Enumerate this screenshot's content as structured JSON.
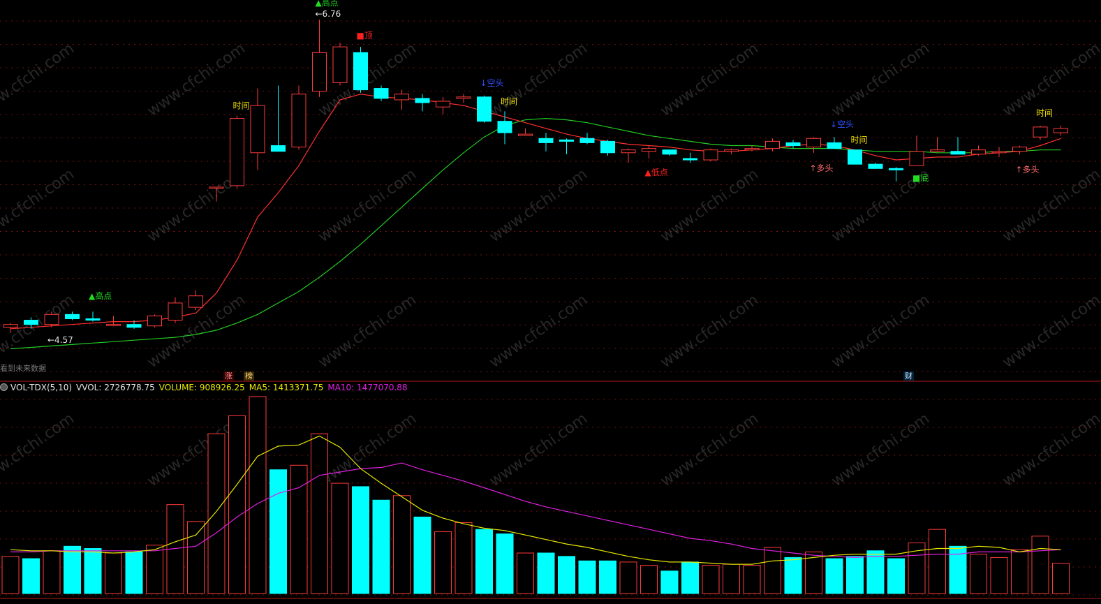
{
  "colors": {
    "up": "#ff3b3b",
    "down": "#00ffff",
    "ma_price_short": "#ff3030",
    "ma_price_long": "#22cc22",
    "vol_ma5": "#e8e800",
    "vol_ma10": "#e020e0",
    "grid": "#7a1010",
    "sep": "#b01818",
    "high_label": "#22dd22",
    "low_label": "#ff2020",
    "kongtou": "#2f4fff",
    "duotou": "#ff6b6b",
    "shijian": "#f0e000"
  },
  "header": {
    "toggle_icon": "circle-toggle-icon",
    "indicator": "VOL-TDX(5,10)",
    "vvol": "VVOL: 2726778.75",
    "volume": "VOLUME: 908926.25",
    "ma5": "MA5: 1413371.75",
    "ma10": "MA10: 1477070.88"
  },
  "hint_text": "看到未来数据",
  "badges": {
    "zhang": "涨",
    "bang": "榜",
    "cai": "财"
  },
  "watermark": "www.cfchi.com",
  "chart_data": [
    {
      "type": "candlestick",
      "candles": [
        {
          "o": 4.61,
          "h": 4.64,
          "l": 4.57,
          "c": 4.63
        },
        {
          "o": 4.66,
          "h": 4.68,
          "l": 4.6,
          "c": 4.63
        },
        {
          "o": 4.63,
          "h": 4.72,
          "l": 4.61,
          "c": 4.7
        },
        {
          "o": 4.7,
          "h": 4.72,
          "l": 4.66,
          "c": 4.67
        },
        {
          "o": 4.67,
          "h": 4.72,
          "l": 4.65,
          "c": 4.66
        },
        {
          "o": 4.63,
          "h": 4.69,
          "l": 4.62,
          "c": 4.63
        },
        {
          "o": 4.63,
          "h": 4.66,
          "l": 4.6,
          "c": 4.61
        },
        {
          "o": 4.62,
          "h": 4.7,
          "l": 4.61,
          "c": 4.69
        },
        {
          "o": 4.66,
          "h": 4.82,
          "l": 4.64,
          "c": 4.78
        },
        {
          "o": 4.75,
          "h": 4.87,
          "l": 4.73,
          "c": 4.83
        },
        {
          "o": 5.59,
          "h": 5.59,
          "l": 5.49,
          "c": 5.59
        },
        {
          "o": 5.6,
          "h": 6.09,
          "l": 5.58,
          "c": 6.07
        },
        {
          "o": 5.83,
          "h": 6.28,
          "l": 5.71,
          "c": 6.16
        },
        {
          "o": 5.88,
          "h": 6.3,
          "l": 5.84,
          "c": 5.84
        },
        {
          "o": 5.87,
          "h": 6.3,
          "l": 5.85,
          "c": 6.24
        },
        {
          "o": 6.26,
          "h": 6.76,
          "l": 6.22,
          "c": 6.53
        },
        {
          "o": 6.32,
          "h": 6.6,
          "l": 6.3,
          "c": 6.57
        },
        {
          "o": 6.53,
          "h": 6.57,
          "l": 6.25,
          "c": 6.27
        },
        {
          "o": 6.28,
          "h": 6.3,
          "l": 6.19,
          "c": 6.21
        },
        {
          "o": 6.2,
          "h": 6.27,
          "l": 6.13,
          "c": 6.24
        },
        {
          "o": 6.21,
          "h": 6.24,
          "l": 6.12,
          "c": 6.18
        },
        {
          "o": 6.15,
          "h": 6.22,
          "l": 6.1,
          "c": 6.19
        },
        {
          "o": 6.21,
          "h": 6.24,
          "l": 6.18,
          "c": 6.22
        },
        {
          "o": 6.22,
          "h": 6.23,
          "l": 6.04,
          "c": 6.05
        },
        {
          "o": 6.05,
          "h": 6.12,
          "l": 5.89,
          "c": 5.97
        },
        {
          "o": 5.95,
          "h": 6.0,
          "l": 5.95,
          "c": 5.96
        },
        {
          "o": 5.93,
          "h": 5.97,
          "l": 5.84,
          "c": 5.9
        },
        {
          "o": 5.92,
          "h": 5.93,
          "l": 5.82,
          "c": 5.91
        },
        {
          "o": 5.93,
          "h": 5.97,
          "l": 5.89,
          "c": 5.9
        },
        {
          "o": 5.91,
          "h": 5.92,
          "l": 5.81,
          "c": 5.83
        },
        {
          "o": 5.83,
          "h": 5.86,
          "l": 5.76,
          "c": 5.85
        },
        {
          "o": 5.84,
          "h": 5.88,
          "l": 5.79,
          "c": 5.86
        },
        {
          "o": 5.85,
          "h": 5.85,
          "l": 5.81,
          "c": 5.82
        },
        {
          "o": 5.79,
          "h": 5.83,
          "l": 5.76,
          "c": 5.78
        },
        {
          "o": 5.78,
          "h": 5.86,
          "l": 5.77,
          "c": 5.85
        },
        {
          "o": 5.84,
          "h": 5.86,
          "l": 5.82,
          "c": 5.85
        },
        {
          "o": 5.85,
          "h": 5.88,
          "l": 5.84,
          "c": 5.86
        },
        {
          "o": 5.86,
          "h": 5.93,
          "l": 5.84,
          "c": 5.91
        },
        {
          "o": 5.9,
          "h": 5.92,
          "l": 5.86,
          "c": 5.88
        },
        {
          "o": 5.87,
          "h": 5.94,
          "l": 5.83,
          "c": 5.93
        },
        {
          "o": 5.9,
          "h": 5.94,
          "l": 5.86,
          "c": 5.86
        },
        {
          "o": 5.85,
          "h": 5.85,
          "l": 5.75,
          "c": 5.75
        },
        {
          "o": 5.75,
          "h": 5.76,
          "l": 5.72,
          "c": 5.72
        },
        {
          "o": 5.72,
          "h": 5.73,
          "l": 5.63,
          "c": 5.71
        },
        {
          "o": 5.74,
          "h": 5.95,
          "l": 5.74,
          "c": 5.84
        },
        {
          "o": 5.84,
          "h": 5.94,
          "l": 5.83,
          "c": 5.85
        },
        {
          "o": 5.84,
          "h": 5.94,
          "l": 5.82,
          "c": 5.82
        },
        {
          "o": 5.82,
          "h": 5.88,
          "l": 5.81,
          "c": 5.85
        },
        {
          "o": 5.83,
          "h": 5.87,
          "l": 5.8,
          "c": 5.84
        },
        {
          "o": 5.84,
          "h": 5.88,
          "l": 5.82,
          "c": 5.87
        },
        {
          "o": 5.94,
          "h": 6.02,
          "l": 5.92,
          "c": 6.01
        },
        {
          "o": 5.97,
          "h": 6.02,
          "l": 5.95,
          "c": 6.0
        }
      ],
      "ma_short": [
        4.6,
        4.61,
        4.62,
        4.63,
        4.64,
        4.65,
        4.65,
        4.66,
        4.68,
        4.71,
        4.85,
        5.08,
        5.38,
        5.55,
        5.74,
        5.98,
        6.2,
        6.24,
        6.22,
        6.21,
        6.2,
        6.18,
        6.16,
        6.12,
        6.08,
        6.04,
        6.0,
        5.96,
        5.93,
        5.91,
        5.89,
        5.88,
        5.87,
        5.85,
        5.84,
        5.84,
        5.85,
        5.86,
        5.88,
        5.89,
        5.88,
        5.85,
        5.81,
        5.78,
        5.79,
        5.8,
        5.8,
        5.82,
        5.83,
        5.84,
        5.88,
        5.93
      ],
      "ma_long": [
        4.46,
        4.47,
        4.48,
        4.49,
        4.5,
        4.51,
        4.52,
        4.53,
        4.54,
        4.56,
        4.59,
        4.64,
        4.7,
        4.78,
        4.86,
        4.96,
        5.07,
        5.19,
        5.32,
        5.45,
        5.58,
        5.71,
        5.83,
        5.94,
        6.02,
        6.06,
        6.07,
        6.06,
        6.04,
        6.01,
        5.98,
        5.95,
        5.93,
        5.91,
        5.89,
        5.88,
        5.88,
        5.87,
        5.86,
        5.86,
        5.86,
        5.85,
        5.84,
        5.84,
        5.84,
        5.83,
        5.83,
        5.83,
        5.84,
        5.84,
        5.85,
        5.85
      ],
      "annotations": [
        {
          "i": 4,
          "text": "▲高点",
          "kind": "high",
          "dy": -18
        },
        {
          "i": 2,
          "text": "←4.57",
          "kind": "price",
          "dy": 22
        },
        {
          "i": 15,
          "text": "▲高点",
          "kind": "high",
          "dy": -20
        },
        {
          "i": 15,
          "text": "←6.76",
          "kind": "price",
          "dy": -4
        },
        {
          "i": 17,
          "text": "■顶",
          "kind": "top",
          "dy": -12
        },
        {
          "i": 11,
          "text": "时间",
          "kind": "time",
          "dy": -10
        },
        {
          "i": 23,
          "text": "↓空头",
          "kind": "kong",
          "dy": -14
        },
        {
          "i": 24,
          "text": "时间",
          "kind": "time",
          "dy": -10
        },
        {
          "i": 31,
          "text": "▲低点",
          "kind": "low",
          "dy": 24
        },
        {
          "i": 40,
          "text": "↓空头",
          "kind": "kong",
          "dy": -14
        },
        {
          "i": 39,
          "text": "↑多头",
          "kind": "duo",
          "dy": 26
        },
        {
          "i": 41,
          "text": "时间",
          "kind": "time",
          "dy": -10
        },
        {
          "i": 44,
          "text": "■底",
          "kind": "bottom",
          "dy": 22
        },
        {
          "i": 49,
          "text": "↑多头",
          "kind": "duo",
          "dy": 26
        },
        {
          "i": 50,
          "text": "时间",
          "kind": "time",
          "dy": -14
        }
      ]
    },
    {
      "type": "bar",
      "title": "VOL-TDX(5,10)",
      "volume": [
        0.33,
        0.31,
        0.38,
        0.42,
        0.4,
        0.36,
        0.37,
        0.43,
        0.79,
        0.64,
        1.42,
        1.58,
        1.75,
        1.1,
        1.14,
        1.42,
        0.98,
        0.95,
        0.83,
        0.87,
        0.68,
        0.55,
        0.63,
        0.57,
        0.53,
        0.36,
        0.36,
        0.33,
        0.29,
        0.29,
        0.28,
        0.25,
        0.2,
        0.28,
        0.25,
        0.26,
        0.25,
        0.41,
        0.32,
        0.37,
        0.31,
        0.33,
        0.38,
        0.31,
        0.45,
        0.57,
        0.42,
        0.35,
        0.32,
        0.39,
        0.51,
        0.27
      ],
      "ma5": [
        0.39,
        0.38,
        0.38,
        0.37,
        0.37,
        0.36,
        0.37,
        0.39,
        0.46,
        0.52,
        0.73,
        0.97,
        1.22,
        1.31,
        1.32,
        1.4,
        1.3,
        1.11,
        0.98,
        0.86,
        0.74,
        0.67,
        0.62,
        0.58,
        0.56,
        0.52,
        0.48,
        0.44,
        0.41,
        0.37,
        0.33,
        0.3,
        0.28,
        0.28,
        0.27,
        0.26,
        0.26,
        0.29,
        0.3,
        0.32,
        0.34,
        0.35,
        0.35,
        0.35,
        0.38,
        0.4,
        0.4,
        0.42,
        0.41,
        0.37,
        0.4,
        0.39
      ],
      "ma10": [
        0.37,
        0.37,
        0.38,
        0.38,
        0.38,
        0.38,
        0.38,
        0.38,
        0.4,
        0.42,
        0.54,
        0.68,
        0.8,
        0.89,
        0.94,
        1.05,
        1.08,
        1.11,
        1.12,
        1.16,
        1.1,
        1.05,
        1.0,
        0.94,
        0.88,
        0.82,
        0.77,
        0.73,
        0.69,
        0.65,
        0.61,
        0.57,
        0.53,
        0.49,
        0.47,
        0.44,
        0.4,
        0.38,
        0.36,
        0.34,
        0.33,
        0.32,
        0.33,
        0.33,
        0.34,
        0.35,
        0.35,
        0.37,
        0.37,
        0.37,
        0.38,
        0.39
      ]
    }
  ]
}
